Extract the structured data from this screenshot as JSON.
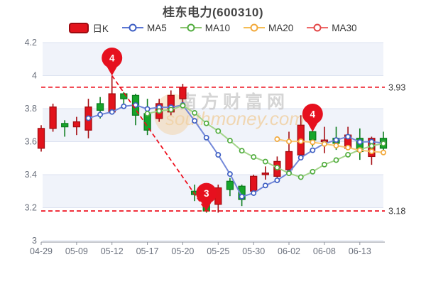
{
  "title": "桂东电力(600310)",
  "legend": {
    "items": [
      {
        "label": "日K"
      },
      {
        "label": "MA5"
      },
      {
        "label": "MA10"
      },
      {
        "label": "MA20"
      },
      {
        "label": "MA30"
      }
    ]
  },
  "watermark": {
    "text": "南方财富网",
    "url": "southmoney.com"
  },
  "chart_data": {
    "type": "candlestick",
    "title": "桂东电力(600310)",
    "ylim": [
      3.0,
      4.2
    ],
    "y_ticks": [
      "4.2",
      "4",
      "3.8",
      "3.6",
      "3.4",
      "3.2",
      "3"
    ],
    "y_tick_values": [
      4.2,
      4.0,
      3.8,
      3.6,
      3.4,
      3.2,
      3.0
    ],
    "x_axis_labels": [
      {
        "index": 0,
        "label": "04-29"
      },
      {
        "index": 3,
        "label": "05-09"
      },
      {
        "index": 6,
        "label": "05-12"
      },
      {
        "index": 9,
        "label": "05-17"
      },
      {
        "index": 12,
        "label": "05-20"
      },
      {
        "index": 15,
        "label": "05-25"
      },
      {
        "index": 18,
        "label": "05-30"
      },
      {
        "index": 21,
        "label": "06-02"
      },
      {
        "index": 24,
        "label": "06-08"
      },
      {
        "index": 27,
        "label": "06-13"
      }
    ],
    "candles": [
      {
        "date": "04-29",
        "o": 3.56,
        "h": 3.7,
        "l": 3.54,
        "c": 3.68
      },
      {
        "date": "05-05",
        "o": 3.68,
        "h": 3.83,
        "l": 3.66,
        "c": 3.81
      },
      {
        "date": "05-06",
        "o": 3.71,
        "h": 3.73,
        "l": 3.63,
        "c": 3.69
      },
      {
        "date": "05-09",
        "o": 3.69,
        "h": 3.75,
        "l": 3.64,
        "c": 3.72
      },
      {
        "date": "05-10",
        "o": 3.67,
        "h": 3.86,
        "l": 3.62,
        "c": 3.81
      },
      {
        "date": "05-11",
        "o": 3.83,
        "h": 3.87,
        "l": 3.74,
        "c": 3.79
      },
      {
        "date": "05-12",
        "o": 3.78,
        "h": 4.0,
        "l": 3.77,
        "c": 3.89
      },
      {
        "date": "05-13",
        "o": 3.89,
        "h": 3.9,
        "l": 3.82,
        "c": 3.86
      },
      {
        "date": "05-16",
        "o": 3.88,
        "h": 3.89,
        "l": 3.7,
        "c": 3.76
      },
      {
        "date": "05-17",
        "o": 3.77,
        "h": 3.86,
        "l": 3.64,
        "c": 3.67
      },
      {
        "date": "05-18",
        "o": 3.74,
        "h": 3.86,
        "l": 3.72,
        "c": 3.83
      },
      {
        "date": "05-19",
        "o": 3.78,
        "h": 3.91,
        "l": 3.76,
        "c": 3.88
      },
      {
        "date": "05-20",
        "o": 3.86,
        "h": 3.95,
        "l": 3.81,
        "c": 3.93
      },
      {
        "date": "05-23",
        "o": 3.3,
        "h": 3.34,
        "l": 3.24,
        "c": 3.28
      },
      {
        "date": "05-24",
        "o": 3.25,
        "h": 3.28,
        "l": 3.17,
        "c": 3.18
      },
      {
        "date": "05-25",
        "o": 3.22,
        "h": 3.34,
        "l": 3.17,
        "c": 3.32
      },
      {
        "date": "05-26",
        "o": 3.36,
        "h": 3.38,
        "l": 3.27,
        "c": 3.31
      },
      {
        "date": "05-27",
        "o": 3.33,
        "h": 3.34,
        "l": 3.21,
        "c": 3.25
      },
      {
        "date": "05-30",
        "o": 3.3,
        "h": 3.4,
        "l": 3.29,
        "c": 3.39
      },
      {
        "date": "05-31",
        "o": 3.4,
        "h": 3.45,
        "l": 3.37,
        "c": 3.41
      },
      {
        "date": "06-01",
        "o": 3.39,
        "h": 3.51,
        "l": 3.38,
        "c": 3.48
      },
      {
        "date": "06-02",
        "o": 3.43,
        "h": 3.66,
        "l": 3.42,
        "c": 3.54
      },
      {
        "date": "06-06",
        "o": 3.52,
        "h": 3.76,
        "l": 3.5,
        "c": 3.7
      },
      {
        "date": "06-07",
        "o": 3.66,
        "h": 3.67,
        "l": 3.57,
        "c": 3.61
      },
      {
        "date": "06-08",
        "o": 3.6,
        "h": 3.69,
        "l": 3.53,
        "c": 3.61
      },
      {
        "date": "06-09",
        "o": 3.62,
        "h": 3.69,
        "l": 3.55,
        "c": 3.59
      },
      {
        "date": "06-10",
        "o": 3.56,
        "h": 3.69,
        "l": 3.56,
        "c": 3.64
      },
      {
        "date": "06-13",
        "o": 3.62,
        "h": 3.68,
        "l": 3.49,
        "c": 3.54
      },
      {
        "date": "06-14",
        "o": 3.51,
        "h": 3.63,
        "l": 3.46,
        "c": 3.62
      },
      {
        "date": "06-15",
        "o": 3.62,
        "h": 3.66,
        "l": 3.55,
        "c": 3.56
      }
    ],
    "series": [
      {
        "name": "MA5",
        "values": [
          null,
          null,
          null,
          null,
          3.742,
          3.764,
          3.78,
          3.814,
          3.822,
          3.798,
          3.808,
          3.808,
          3.822,
          3.726,
          3.624,
          3.52,
          3.404,
          3.267,
          3.288,
          3.334,
          3.366,
          3.412,
          3.503,
          3.548,
          3.588,
          3.61,
          3.63,
          3.598,
          3.6,
          3.59
        ]
      },
      {
        "name": "MA10",
        "values": [
          null,
          null,
          null,
          null,
          null,
          null,
          null,
          null,
          null,
          3.77,
          3.786,
          3.794,
          3.818,
          3.774,
          3.711,
          3.664,
          3.606,
          3.545,
          3.507,
          3.479,
          3.443,
          3.408,
          3.385,
          3.418,
          3.461,
          3.488,
          3.521,
          3.551,
          3.574,
          3.589
        ]
      },
      {
        "name": "MA20",
        "values": [
          null,
          null,
          null,
          null,
          null,
          null,
          null,
          null,
          null,
          null,
          null,
          null,
          null,
          null,
          null,
          null,
          null,
          null,
          null,
          null,
          3.615,
          3.601,
          3.602,
          3.596,
          3.586,
          3.576,
          3.564,
          3.548,
          3.541,
          3.534
        ]
      },
      {
        "name": "MA30",
        "values": [
          null,
          null,
          null,
          null,
          null,
          null,
          null,
          null,
          null,
          null,
          null,
          null,
          null,
          null,
          null,
          null,
          null,
          null,
          null,
          null,
          null,
          null,
          null,
          null,
          null,
          null,
          null,
          null,
          null,
          null
        ]
      }
    ],
    "guide_lines": [
      {
        "value": 3.93,
        "label": "3.93"
      },
      {
        "value": 3.18,
        "label": "3.18"
      }
    ],
    "trend_line": {
      "from": {
        "index": 6,
        "price": 4.0
      },
      "to": {
        "index": 14,
        "price": 3.18
      }
    },
    "markers": [
      {
        "text": "4",
        "index": 6,
        "price": 4.0
      },
      {
        "text": "3",
        "index": 14,
        "price": 3.18
      },
      {
        "text": "4",
        "index": 23,
        "price": 3.66
      }
    ],
    "colors": {
      "up": "#e2131c",
      "up_border": "#a50d12",
      "down": "#17a52b",
      "down_border": "#0d7d1e",
      "ma5": "#3e5fc3",
      "ma5_line": "#7388d9",
      "ma10": "#52ad3f",
      "ma10_line": "#a2d489",
      "ma20": "#f2a93b",
      "ma20_line": "#f8c871",
      "ma30": "#e34848",
      "marker": "#e6101e",
      "guide": "#ee0a18",
      "grid_line": "#dde3f1",
      "split_band": "#f0f3fa",
      "axis_line": "#8d929c",
      "axis_label": "#6b717d"
    },
    "legend_position": "top",
    "grid": "horizontal-with-alternating-bands"
  }
}
